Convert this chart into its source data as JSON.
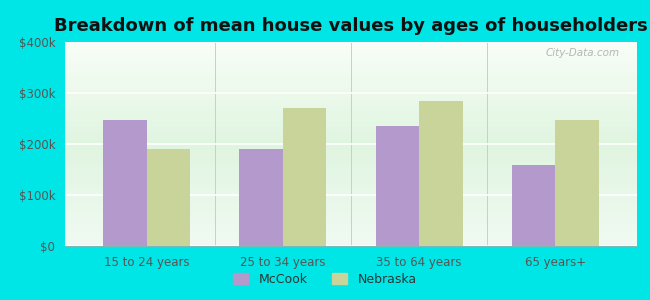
{
  "title": "Breakdown of mean house values by ages of householders",
  "categories": [
    "15 to 24 years",
    "25 to 34 years",
    "35 to 64 years",
    "65 years+"
  ],
  "mccook_values": [
    248000,
    190000,
    235000,
    158000
  ],
  "nebraska_values": [
    190000,
    270000,
    285000,
    248000
  ],
  "mccook_color": "#b399cc",
  "nebraska_color": "#c8d49a",
  "background_color": "#00e5e5",
  "ylim": [
    0,
    400000
  ],
  "yticks": [
    0,
    100000,
    200000,
    300000,
    400000
  ],
  "ytick_labels": [
    "$0",
    "$100k",
    "$200k",
    "$300k",
    "$400k"
  ],
  "bar_width": 0.32,
  "legend_mccook": "McCook",
  "legend_nebraska": "Nebraska",
  "title_fontsize": 13,
  "tick_fontsize": 8.5,
  "legend_fontsize": 9
}
